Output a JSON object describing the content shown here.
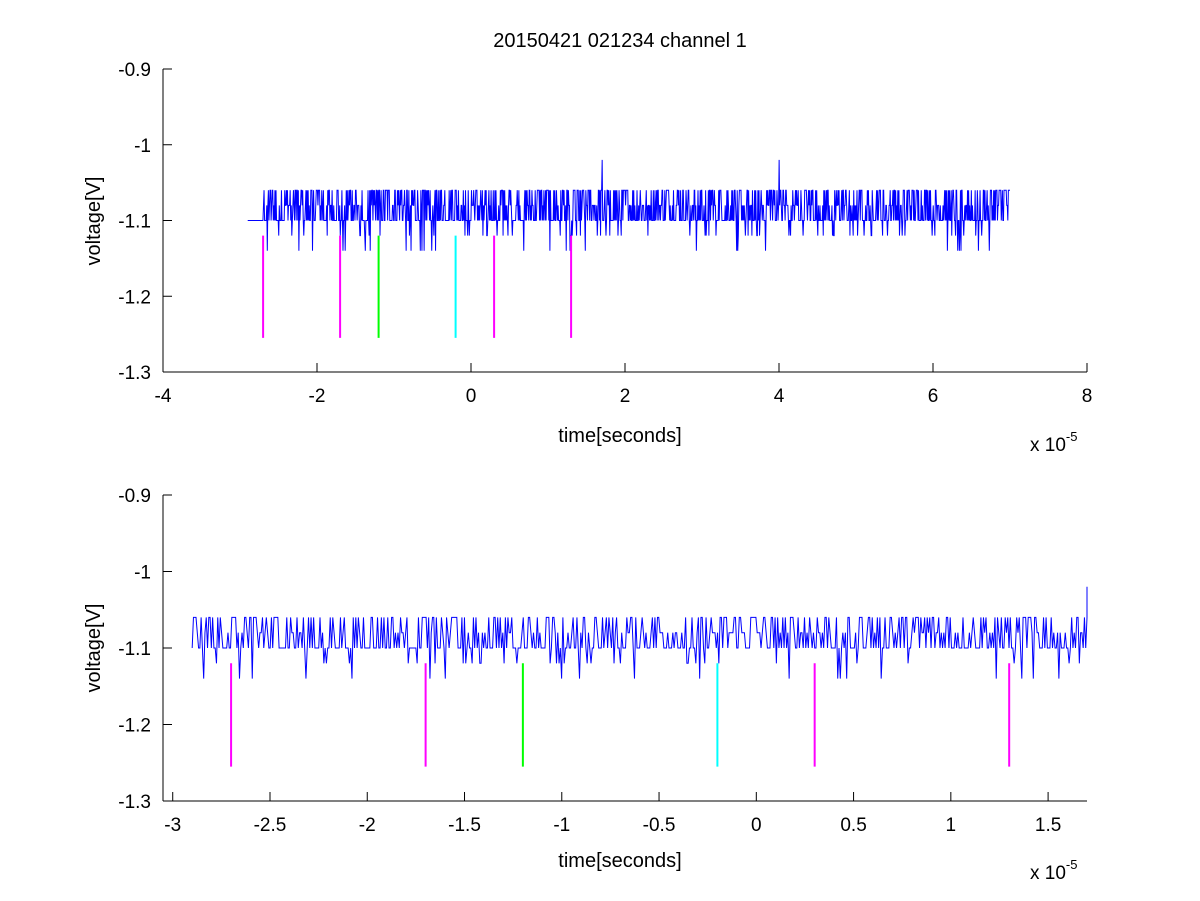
{
  "chart_data": [
    {
      "type": "line",
      "title": "20150421 021234 channel 1",
      "xlabel": "time[seconds]",
      "ylabel": "voltage[V]",
      "x_multiplier_label": "x 10",
      "x_multiplier_exponent": "-5",
      "xlim": [
        -4,
        8
      ],
      "ylim": [
        -1.3,
        -0.9
      ],
      "y_reversed": true,
      "xticks": [
        -4,
        -2,
        0,
        2,
        4,
        6,
        8
      ],
      "xtick_labels": [
        "-4",
        "-2",
        "0",
        "2",
        "4",
        "6",
        "8"
      ],
      "yticks": [
        -0.9,
        -1.0,
        -1.1,
        -1.2,
        -1.3
      ],
      "ytick_labels": [
        "-0.9",
        "-1",
        "-1.1",
        "-1.2",
        "-1.3"
      ],
      "grid": false,
      "series": [
        {
          "color": "#0000ff",
          "x_range": [
            -2.9,
            7.0
          ],
          "baseline": -1.1,
          "levels": [
            -1.14,
            -1.12,
            -1.1,
            -1.08,
            -1.06
          ],
          "spikes": [
            {
              "x": 1.7,
              "y": -1.02
            },
            {
              "x": 4.0,
              "y": -1.02
            }
          ]
        }
      ],
      "markers": [
        {
          "x": -2.7,
          "y_range": [
            -1.12,
            -1.255
          ],
          "color": "#ff00ff"
        },
        {
          "x": -1.7,
          "y_range": [
            -1.12,
            -1.255
          ],
          "color": "#ff00ff"
        },
        {
          "x": -1.2,
          "y_range": [
            -1.12,
            -1.255
          ],
          "color": "#00ff00"
        },
        {
          "x": -0.2,
          "y_range": [
            -1.12,
            -1.255
          ],
          "color": "#00ffff"
        },
        {
          "x": 0.3,
          "y_range": [
            -1.12,
            -1.255
          ],
          "color": "#ff00ff"
        },
        {
          "x": 1.3,
          "y_range": [
            -1.12,
            -1.255
          ],
          "color": "#ff00ff"
        }
      ]
    },
    {
      "type": "line",
      "title": "",
      "xlabel": "time[seconds]",
      "ylabel": "voltage[V]",
      "x_multiplier_label": "x 10",
      "x_multiplier_exponent": "-5",
      "xlim": [
        -3.05,
        1.7
      ],
      "ylim": [
        -1.3,
        -0.9
      ],
      "y_reversed": true,
      "xticks": [
        -3,
        -2.5,
        -2,
        -1.5,
        -1,
        -0.5,
        0,
        0.5,
        1,
        1.5
      ],
      "xtick_labels": [
        "-3",
        "-2.5",
        "-2",
        "-1.5",
        "-1",
        "-0.5",
        "0",
        "0.5",
        "1",
        "1.5"
      ],
      "yticks": [
        -0.9,
        -1.0,
        -1.1,
        -1.2,
        -1.3
      ],
      "ytick_labels": [
        "-0.9",
        "-1",
        "-1.1",
        "-1.2",
        "-1.3"
      ],
      "grid": false,
      "series": [
        {
          "color": "#0000ff",
          "x_range": [
            -2.9,
            1.7
          ],
          "baseline": -1.1,
          "levels": [
            -1.14,
            -1.12,
            -1.1,
            -1.08,
            -1.06
          ],
          "end_rise": {
            "x": 1.7,
            "y": -1.02
          }
        }
      ],
      "markers": [
        {
          "x": -2.7,
          "y_range": [
            -1.12,
            -1.255
          ],
          "color": "#ff00ff"
        },
        {
          "x": -1.7,
          "y_range": [
            -1.12,
            -1.255
          ],
          "color": "#ff00ff"
        },
        {
          "x": -1.2,
          "y_range": [
            -1.12,
            -1.255
          ],
          "color": "#00ff00"
        },
        {
          "x": -0.2,
          "y_range": [
            -1.12,
            -1.255
          ],
          "color": "#00ffff"
        },
        {
          "x": 0.3,
          "y_range": [
            -1.12,
            -1.255
          ],
          "color": "#ff00ff"
        },
        {
          "x": 1.3,
          "y_range": [
            -1.12,
            -1.255
          ],
          "color": "#ff00ff"
        }
      ]
    }
  ]
}
